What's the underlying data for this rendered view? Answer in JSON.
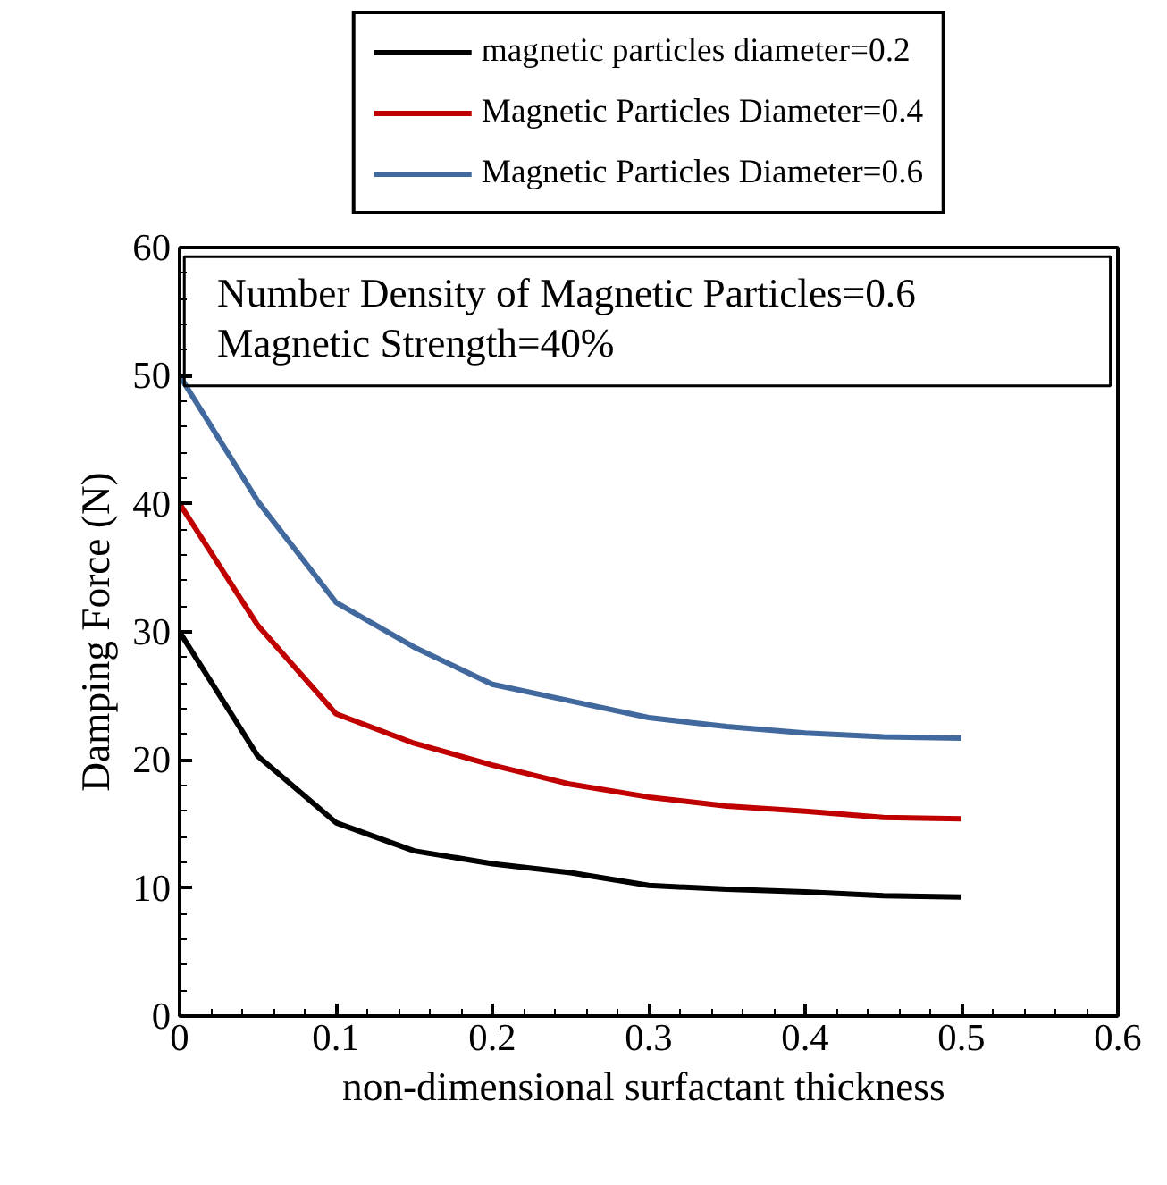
{
  "chart_data": {
    "type": "line",
    "xlabel": "non-dimensional  surfactant thickness",
    "ylabel": "Damping Force (N)",
    "x": [
      0,
      0.05,
      0.1,
      0.15,
      0.2,
      0.25,
      0.3,
      0.35,
      0.4,
      0.45,
      0.5
    ],
    "series": [
      {
        "name": "magnetic particles diameter=0.2",
        "color": "#000000",
        "values": [
          30,
          20.3,
          15.1,
          12.9,
          11.9,
          11.2,
          10.2,
          9.9,
          9.7,
          9.4,
          9.3
        ]
      },
      {
        "name": "Magnetic Particles Diameter=0.4",
        "color": "#c00000",
        "values": [
          40,
          30.5,
          23.6,
          21.3,
          19.6,
          18.1,
          17.1,
          16.4,
          16.0,
          15.5,
          15.4
        ]
      },
      {
        "name": "Magnetic Particles Diameter=0.6",
        "color": "#41699e",
        "values": [
          50,
          40.2,
          32.3,
          28.8,
          25.9,
          24.6,
          23.3,
          22.6,
          22.1,
          21.8,
          21.7
        ]
      }
    ],
    "xlim": [
      0,
      0.6
    ],
    "xticks": [
      0,
      0.1,
      0.2,
      0.3,
      0.4,
      0.5,
      0.6
    ],
    "ylim": [
      0,
      60
    ],
    "yticks": [
      0,
      10,
      20,
      30,
      40,
      50,
      60
    ],
    "annotations": [
      "Number Density of Magnetic Particles=0.6",
      "Magnetic Strength=40%"
    ],
    "grid": false,
    "legend": "top",
    "marker": "none",
    "line_style": "solid"
  }
}
